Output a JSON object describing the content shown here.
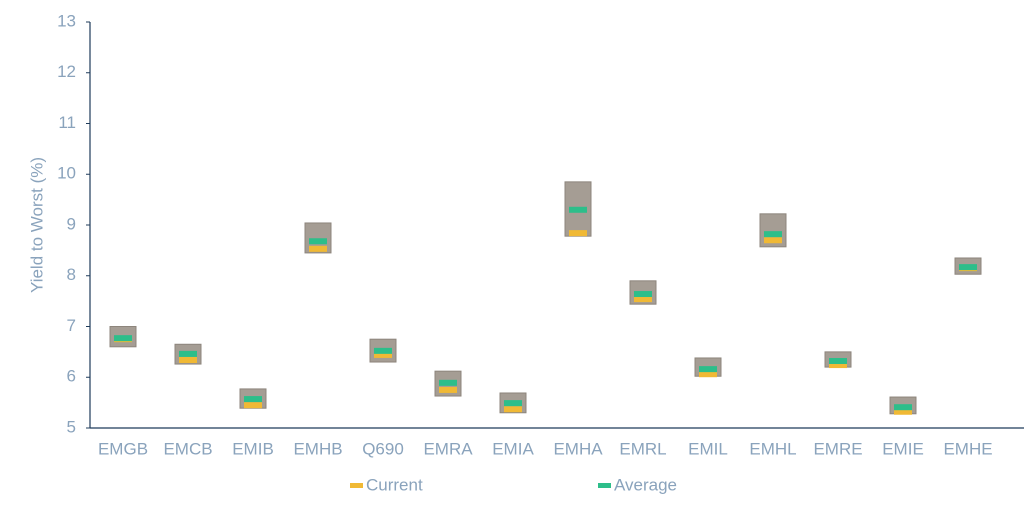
{
  "chart_data": {
    "type": "range",
    "y_label": "Yield to Worst (%)",
    "categories": [
      "EMGB",
      "EMCB",
      "EMIB",
      "EMHB",
      "Q690",
      "EMRA",
      "EMIA",
      "EMHA",
      "EMRL",
      "EMIL",
      "EMHL",
      "EMRE",
      "EMIE",
      "EMHE"
    ],
    "low": [
      6.6,
      6.26,
      5.39,
      8.45,
      6.3,
      5.63,
      5.3,
      8.78,
      7.44,
      6.02,
      8.57,
      6.2,
      5.28,
      8.03
    ],
    "high": [
      7.0,
      6.65,
      5.77,
      9.04,
      6.75,
      6.12,
      5.69,
      9.85,
      7.9,
      6.38,
      9.22,
      6.5,
      5.61,
      8.35
    ],
    "range_color": "#a59d94",
    "series": [
      {
        "name": "Current",
        "color": "#f0b935",
        "values": [
          6.75,
          6.34,
          5.45,
          8.53,
          6.44,
          5.75,
          5.37,
          8.84,
          7.54,
          6.06,
          8.7,
          6.24,
          5.32,
          8.15
        ]
      },
      {
        "name": "Average",
        "color": "#2dbe8a",
        "values": [
          6.77,
          6.46,
          5.57,
          8.68,
          6.52,
          5.89,
          5.49,
          9.3,
          7.64,
          6.16,
          8.82,
          6.32,
          5.41,
          8.17
        ]
      }
    ],
    "ylim": [
      5,
      13
    ],
    "yticks": [
      5,
      6,
      7,
      8,
      9,
      10,
      11,
      12,
      13
    ]
  }
}
